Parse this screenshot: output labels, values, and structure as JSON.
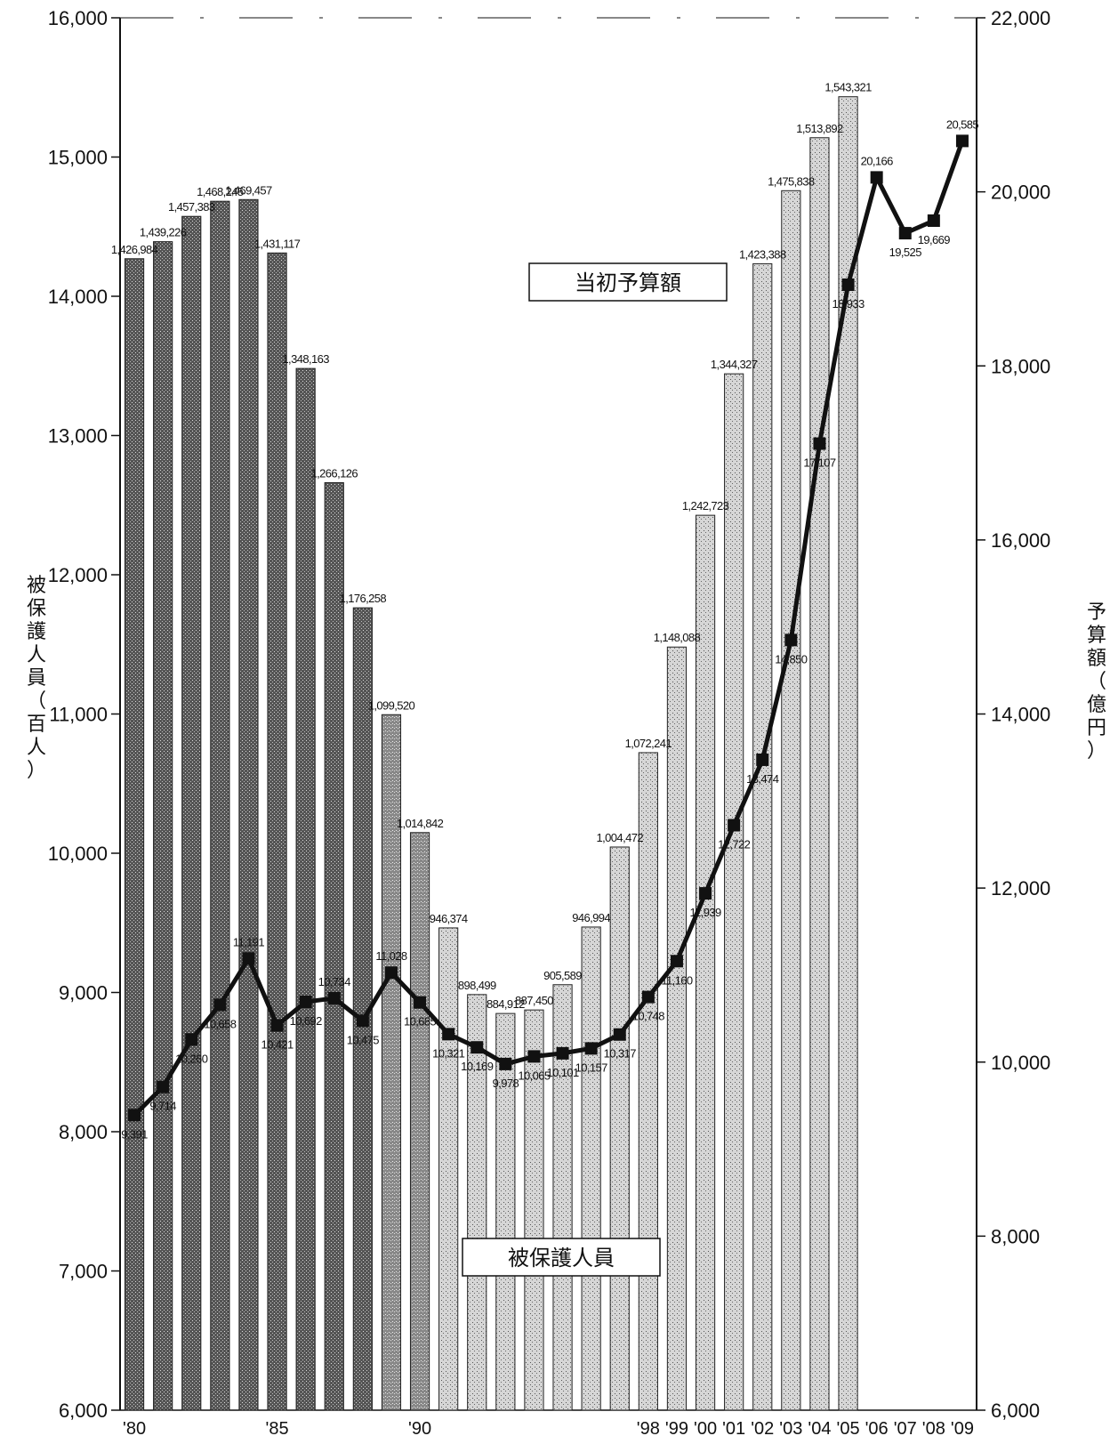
{
  "chart_data": {
    "type": "bar+line",
    "x": [
      "'80",
      "'81",
      "'82",
      "'83",
      "'84",
      "'85",
      "'86",
      "'87",
      "'88",
      "'89",
      "'90",
      "'91",
      "'92",
      "'93",
      "'94",
      "'95",
      "'96",
      "'97",
      "'98",
      "'99",
      "'00",
      "'01",
      "'02",
      "'03",
      "'04",
      "'05",
      "'06",
      "'07",
      "'08",
      "'09"
    ],
    "x_tick_labels": [
      "'80",
      "",
      "",
      "",
      "",
      "'85",
      "",
      "",
      "",
      "",
      "'90",
      "",
      "",
      "",
      "",
      "",
      "",
      "",
      "'98",
      "'99",
      "'00",
      "'01",
      "'02",
      "'03",
      "'04",
      "'05",
      "'06",
      "'07",
      "'08",
      "'09"
    ],
    "series": [
      {
        "name": "被保護人員",
        "kind": "bar",
        "axis": "left",
        "values": [
          1426984,
          1439226,
          1457383,
          1468245,
          1469457,
          1431117,
          1348163,
          1266126,
          1176258,
          1099520,
          1014842,
          946374,
          898499,
          884912,
          887450,
          905589,
          946994,
          1004472,
          1072241,
          1148088,
          1242723,
          1344327,
          1423388,
          1475838,
          1513892,
          1543321,
          null,
          null,
          null,
          null
        ],
        "labels": [
          "1,426,984",
          "1,439,226",
          "1,457,383",
          "1,468,245",
          "1,469,457",
          "1,431,117",
          "1,348,163",
          "1,266,126",
          "1,176,258",
          "1,099,520",
          "1,014,842",
          "946,374",
          "898,499",
          "884,912",
          "887,450",
          "905,589",
          "946,994",
          "1,004,472",
          "1,072,241",
          "1,148,088",
          "1,242,723",
          "1,344,327",
          "1,423,388",
          "1,475,838",
          "1,513,892",
          "1,543,321",
          "",
          "",
          "",
          ""
        ]
      },
      {
        "name": "当初予算額",
        "kind": "line",
        "axis": "right",
        "values": [
          9391,
          9714,
          10260,
          10658,
          11191,
          10421,
          10692,
          10734,
          10475,
          11028,
          10685,
          10321,
          10169,
          9978,
          10065,
          10101,
          10157,
          10317,
          10748,
          11160,
          11939,
          12722,
          13474,
          14850,
          17107,
          18933,
          20166,
          19525,
          19669,
          20585
        ],
        "labels": [
          "9,391",
          "9,714",
          "10,260",
          "10,658",
          "11,191",
          "10,421",
          "10,692",
          "10,734",
          "10,475",
          "11,028",
          "10,685",
          "10,321",
          "10,169",
          "9,978",
          "10,065",
          "10,101",
          "10,157",
          "10,317",
          "10,748",
          "11,160",
          "11,939",
          "12,722",
          "13,474",
          "14,850",
          "17,107",
          "18,933",
          "20,166",
          "19,525",
          "19,669",
          "20,585"
        ]
      }
    ],
    "left_axis": {
      "label": "被保護人員（百人）",
      "ylim": [
        6000,
        16000
      ],
      "ticks": [
        "6,000",
        "7,000",
        "8,000",
        "9,000",
        "10,000",
        "11,000",
        "12,000",
        "13,000",
        "14,000",
        "15,000",
        "16,000"
      ]
    },
    "right_axis": {
      "label": "予算額（億円）",
      "ylim": [
        6000,
        22000
      ],
      "ticks": [
        "6,000",
        "8,000",
        "10,000",
        "12,000",
        "14,000",
        "16,000",
        "18,000",
        "20,000",
        "22,000"
      ]
    },
    "legend": [
      {
        "series": "当初予算額",
        "placement": "upper-center"
      },
      {
        "series": "被保護人員",
        "placement": "lower-center"
      }
    ],
    "grid": false
  }
}
